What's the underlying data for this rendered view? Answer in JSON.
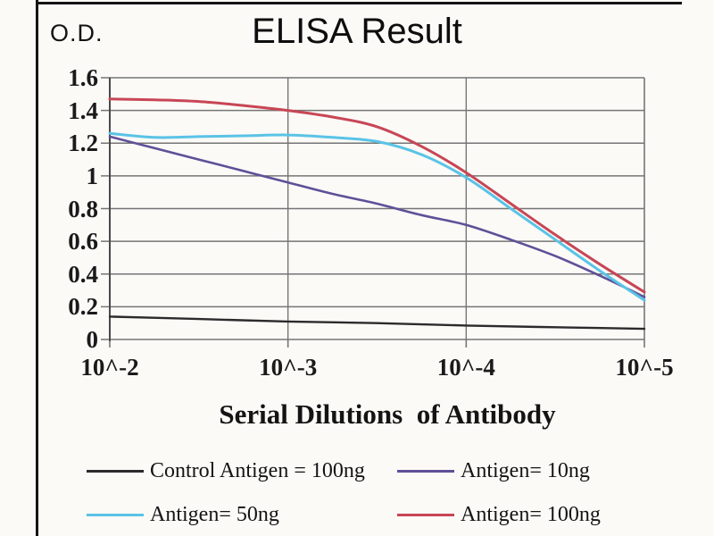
{
  "figure": {
    "od_corner_label": "O.D."
  },
  "chart_data": {
    "type": "line",
    "title": "ELISA Result",
    "ylabel": "O.D.",
    "xlabel": "Serial Dilutions  of Antibody",
    "ylim": [
      0,
      1.6
    ],
    "y_ticks": [
      1.6,
      1.4,
      1.2,
      1.0,
      0.8,
      0.6,
      0.4,
      0.2,
      0
    ],
    "y_tick_labels": [
      "1.6",
      "1.4",
      "1.2",
      "1",
      "0.8",
      "0.6",
      "0.4",
      "0.2",
      "0"
    ],
    "x_tick_labels": [
      "10^-2",
      "10^-3",
      "10^-4",
      "10^-5"
    ],
    "x_tick_positions": [
      0,
      1,
      2,
      3
    ],
    "x_axis_note": "x measured in dilution decades, 0 = 10^-2 through 3 = 10^-5",
    "grid": {
      "horizontal_step": 0.2,
      "vertical_at_ticks": true,
      "color": "#757575"
    },
    "legend_position": "bottom, 2 columns x 2 rows",
    "series": [
      {
        "name": "Control Antigen = 100ng",
        "color": "#2B2B2B",
        "stroke_width": 2.4,
        "points": [
          [
            0,
            0.14
          ],
          [
            0.5,
            0.125
          ],
          [
            1,
            0.11
          ],
          [
            1.5,
            0.1
          ],
          [
            2,
            0.085
          ],
          [
            2.5,
            0.075
          ],
          [
            3,
            0.065
          ]
        ]
      },
      {
        "name": "Antigen= 10ng",
        "color": "#5F5098",
        "stroke_width": 2.6,
        "points": [
          [
            0,
            1.24
          ],
          [
            0.25,
            1.17
          ],
          [
            0.5,
            1.1
          ],
          [
            0.75,
            1.03
          ],
          [
            1,
            0.96
          ],
          [
            1.25,
            0.89
          ],
          [
            1.5,
            0.83
          ],
          [
            1.75,
            0.76
          ],
          [
            2,
            0.7
          ],
          [
            2.25,
            0.61
          ],
          [
            2.5,
            0.51
          ],
          [
            2.75,
            0.39
          ],
          [
            3,
            0.26
          ]
        ]
      },
      {
        "name": "Antigen= 50ng",
        "color": "#5AC3E6",
        "stroke_width": 3,
        "points": [
          [
            0,
            1.26
          ],
          [
            0.25,
            1.235
          ],
          [
            0.5,
            1.24
          ],
          [
            0.75,
            1.245
          ],
          [
            1,
            1.25
          ],
          [
            1.25,
            1.235
          ],
          [
            1.5,
            1.21
          ],
          [
            1.75,
            1.13
          ],
          [
            2,
            0.99
          ],
          [
            2.25,
            0.8
          ],
          [
            2.5,
            0.61
          ],
          [
            2.75,
            0.42
          ],
          [
            3,
            0.24
          ]
        ]
      },
      {
        "name": "Antigen= 100ng",
        "color": "#C84655",
        "stroke_width": 3,
        "points": [
          [
            0,
            1.47
          ],
          [
            0.25,
            1.465
          ],
          [
            0.5,
            1.455
          ],
          [
            0.75,
            1.43
          ],
          [
            1,
            1.4
          ],
          [
            1.25,
            1.36
          ],
          [
            1.5,
            1.3
          ],
          [
            1.75,
            1.18
          ],
          [
            2,
            1.02
          ],
          [
            2.25,
            0.83
          ],
          [
            2.5,
            0.64
          ],
          [
            2.75,
            0.46
          ],
          [
            3,
            0.29
          ]
        ]
      }
    ]
  }
}
